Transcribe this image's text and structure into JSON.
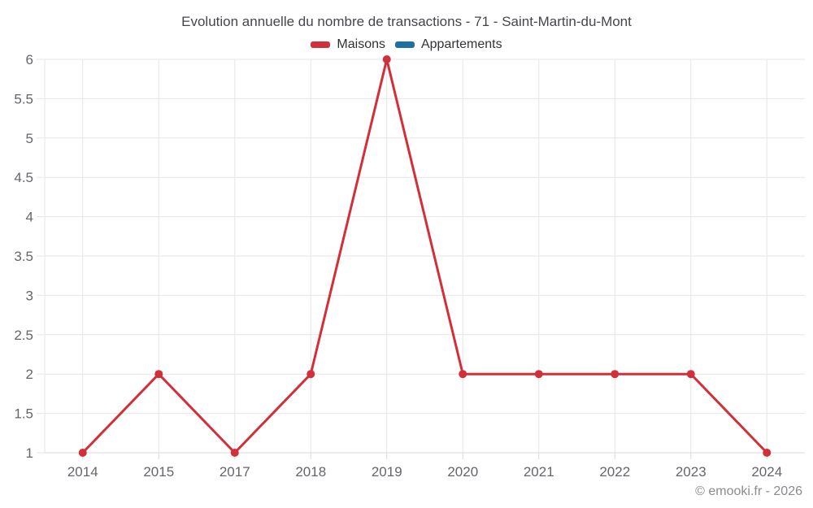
{
  "chart_data": {
    "type": "line",
    "title": "Evolution annuelle du nombre de transactions - 71 - Saint-Martin-du-Mont",
    "categories": [
      "2014",
      "2015",
      "2017",
      "2018",
      "2019",
      "2020",
      "2021",
      "2022",
      "2023",
      "2024"
    ],
    "series": [
      {
        "name": "Maisons",
        "color": "#d32f38",
        "values": [
          1,
          2,
          1,
          2,
          6,
          2,
          2,
          2,
          2,
          1
        ]
      },
      {
        "name": "Appartements",
        "color": "#1d70a6",
        "values": []
      }
    ],
    "ylim": [
      1,
      6
    ],
    "yticks": [
      1,
      1.5,
      2,
      2.5,
      3,
      3.5,
      4,
      4.5,
      5,
      5.5,
      6
    ],
    "grid": true,
    "legend_position": "top",
    "grid_color": "#e6e6e6",
    "axis_line_color": "#d6d9dd",
    "marker_radius": 5,
    "line_width": 3
  },
  "footer": {
    "copyright": "© emooki.fr - 2026"
  }
}
